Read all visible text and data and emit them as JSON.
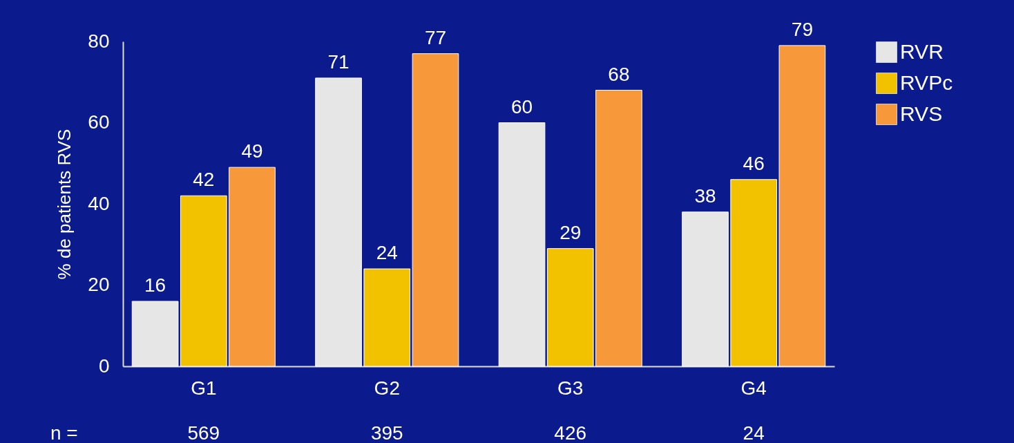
{
  "chart_data": {
    "type": "bar",
    "ylabel": "% de patients RVS",
    "categories": [
      "G1",
      "G2",
      "G3",
      "G4"
    ],
    "series": [
      {
        "name": "RVR",
        "color": "#e6e6e6",
        "values": [
          16,
          71,
          60,
          38
        ]
      },
      {
        "name": "RVPc",
        "color": "#f2c200",
        "values": [
          42,
          24,
          29,
          46
        ]
      },
      {
        "name": "RVS",
        "color": "#f7983a",
        "values": [
          49,
          77,
          68,
          79
        ]
      }
    ],
    "ylim": [
      0,
      80
    ],
    "yticks": [
      0,
      20,
      40,
      60,
      80
    ],
    "grid": false,
    "legend": "top right",
    "data_labels": true,
    "annotations": [
      "n =",
      "569",
      "395",
      "426",
      "24"
    ]
  }
}
